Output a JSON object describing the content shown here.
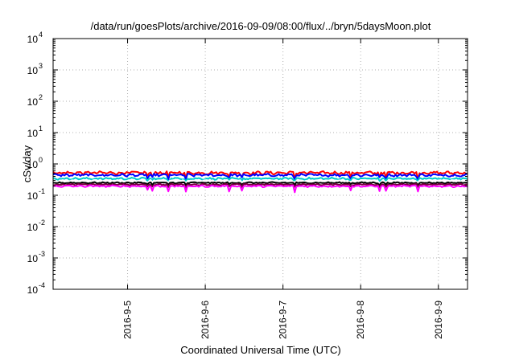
{
  "chart_data": {
    "type": "line",
    "title": "/data/run/goesPlots/archive/2016-09-09/08:00/flux/../bryn/5daysMoon.plot",
    "xlabel": "Coordinated Universal Time (UTC)",
    "ylabel": "cSv/day",
    "yscale": "log",
    "ylim": [
      0.0001,
      10000
    ],
    "xlim": [
      "2016-09-04T01:00",
      "2016-09-09T09:00"
    ],
    "grid": true,
    "legend": "none",
    "y_ticks": [
      {
        "exp": "-4",
        "value": 0.0001
      },
      {
        "exp": "-3",
        "value": 0.001
      },
      {
        "exp": "-2",
        "value": 0.01
      },
      {
        "exp": "-1",
        "value": 0.1
      },
      {
        "exp": "0",
        "value": 1
      },
      {
        "exp": "1",
        "value": 10
      },
      {
        "exp": "2",
        "value": 100
      },
      {
        "exp": "3",
        "value": 1000
      },
      {
        "exp": "4",
        "value": 10000
      }
    ],
    "y_tick_base": "10",
    "x_ticks": [
      {
        "label": "2016-9-5",
        "time": "2016-09-05T00:00"
      },
      {
        "label": "2016-9-6",
        "time": "2016-09-06T00:00"
      },
      {
        "label": "2016-9-7",
        "time": "2016-09-07T00:00"
      },
      {
        "label": "2016-9-8",
        "time": "2016-09-08T00:00"
      },
      {
        "label": "2016-9-9",
        "time": "2016-09-09T00:00"
      }
    ],
    "series": [
      {
        "color": "#ff0000",
        "level": 0.52,
        "noise": 0.09,
        "dip_depth": 0.35
      },
      {
        "color": "#0000ff",
        "level": 0.44,
        "noise": 0.08,
        "dip_depth": 0.32
      },
      {
        "color": "#00cccc",
        "level": 0.34,
        "noise": 0.06,
        "dip_depth": 0.22
      },
      {
        "color": "#ffffff",
        "level": 0.29,
        "noise": 0.05,
        "dip_depth": 0.18
      },
      {
        "color": "#000000",
        "level": 0.25,
        "noise": 0.04,
        "dip_depth": 0.18
      },
      {
        "color": "#7a0040",
        "level": 0.22,
        "noise": 0.04,
        "dip_depth": 0.22
      },
      {
        "color": "#ff00ff",
        "level": 0.195,
        "noise": 0.05,
        "dip_depth": 0.42
      }
    ]
  }
}
